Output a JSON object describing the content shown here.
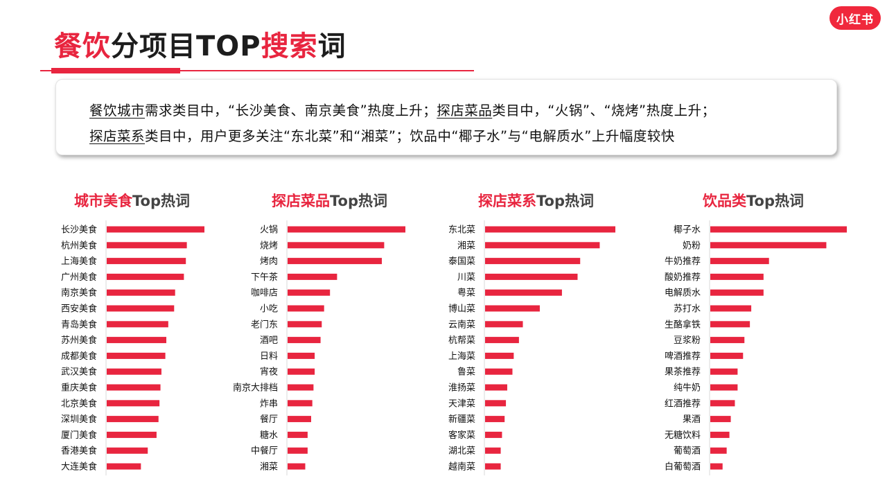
{
  "header": {
    "title_red_1": "餐饮",
    "title_dark_1": "分项目TOP",
    "title_red_2": "搜索",
    "title_dark_2": "词",
    "logo_text": "小红书"
  },
  "summary": {
    "line1": [
      {
        "text": "餐饮城市",
        "u": true
      },
      {
        "text": "需求类目中，“长沙美食、南京美食”热度上升；",
        "u": false
      },
      {
        "text": "探店菜品",
        "u": true
      },
      {
        "text": "类目中，“火锅”、“烧烤”热度上升；",
        "u": false
      }
    ],
    "line2": [
      {
        "text": "探店菜系",
        "u": true
      },
      {
        "text": "类目中，用户更多关注“东北菜”和“湘菜”；饮品中“椰子水”与“电解质水”上升幅度较快",
        "u": false
      }
    ]
  },
  "colors": {
    "accent": "#e8253f",
    "bar": "#e8253f"
  },
  "chart_data": [
    {
      "type": "bar",
      "orientation": "horizontal",
      "title_red": "城市美食",
      "title_dark": "Top热词",
      "categories": [
        "长沙美食",
        "杭州美食",
        "上海美食",
        "广州美食",
        "南京美食",
        "西安美食",
        "青岛美食",
        "苏州美食",
        "成都美食",
        "武汉美食",
        "重庆美食",
        "北京美食",
        "深圳美食",
        "厦门美食",
        "香港美食",
        "大连美食"
      ],
      "values": [
        100,
        82,
        81,
        79,
        70,
        69,
        63,
        61,
        60,
        56,
        55,
        54,
        53,
        51,
        42,
        35
      ],
      "xlim": [
        0,
        100
      ]
    },
    {
      "type": "bar",
      "orientation": "horizontal",
      "title_red": "探店菜品",
      "title_dark": "Top热词",
      "categories": [
        "火锅",
        "烧烤",
        "烤肉",
        "下午茶",
        "咖啡店",
        "小吃",
        "老门东",
        "酒吧",
        "日料",
        "宵夜",
        "南京大排档",
        "炸串",
        "餐厅",
        "糖水",
        "中餐厅",
        "湘菜"
      ],
      "values": [
        100,
        82,
        80,
        42,
        36,
        31,
        29,
        28,
        23,
        23,
        22,
        21,
        20,
        17,
        17,
        15
      ],
      "xlim": [
        0,
        100
      ]
    },
    {
      "type": "bar",
      "orientation": "horizontal",
      "title_red": "探店菜系",
      "title_dark": "Top热词",
      "categories": [
        "东北菜",
        "湘菜",
        "泰国菜",
        "川菜",
        "粤菜",
        "博山菜",
        "云南菜",
        "杭帮菜",
        "上海菜",
        "鲁菜",
        "淮扬菜",
        "天津菜",
        "新疆菜",
        "客家菜",
        "湖北菜",
        "越南菜"
      ],
      "values": [
        100,
        88,
        73,
        71,
        59,
        42,
        29,
        26,
        22,
        21,
        17,
        16,
        15,
        13,
        12,
        12
      ],
      "xlim": [
        0,
        100
      ]
    },
    {
      "type": "bar",
      "orientation": "horizontal",
      "title_red": "饮品类",
      "title_dark": "Top热词",
      "categories": [
        "椰子水",
        "奶粉",
        "牛奶推荐",
        "酸奶推荐",
        "电解质水",
        "苏打水",
        "生酪拿铁",
        "豆浆粉",
        "啤酒推荐",
        "果茶推荐",
        "纯牛奶",
        "红酒推荐",
        "果酒",
        "无糖饮料",
        "葡萄酒",
        "白葡萄酒"
      ],
      "values": [
        100,
        85,
        43,
        39,
        39,
        30,
        29,
        25,
        24,
        20,
        20,
        18,
        15,
        14,
        12,
        9
      ],
      "xlim": [
        0,
        100
      ]
    }
  ]
}
